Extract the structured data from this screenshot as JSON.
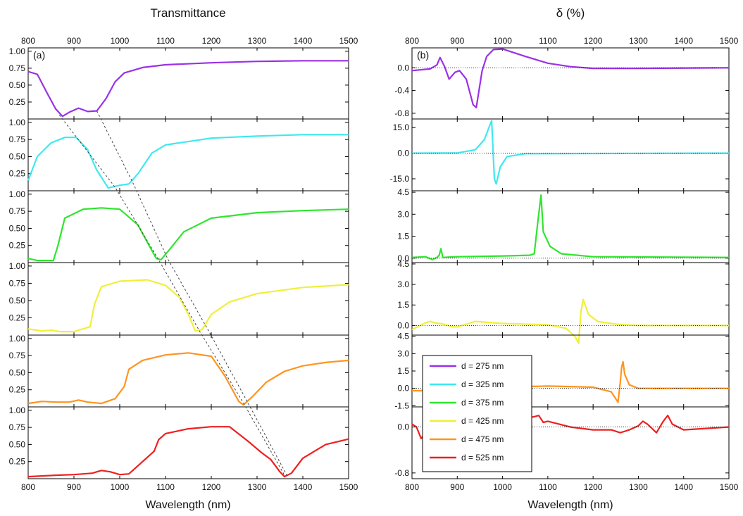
{
  "figure": {
    "left_title": "Transmittance",
    "right_title": "δ (%)",
    "left_xlabel": "Wavelength (nm)",
    "right_xlabel": "Wavelength (nm)",
    "left_panel_label": "(a)",
    "right_panel_label": "(b)"
  },
  "series_colors": [
    "#9b30e6",
    "#3fe8f0",
    "#2ee62e",
    "#f0ef3a",
    "#ff9420",
    "#ee2020"
  ],
  "legend": [
    "d = 275 nm",
    "d = 325 nm",
    "d = 375 nm",
    "d = 425 nm",
    "d = 475 nm",
    "d = 525 nm"
  ],
  "chart_data": [
    {
      "type": "line",
      "title": "Transmittance",
      "xlabel": "Wavelength (nm)",
      "xlim": [
        800,
        1500
      ],
      "xticks": [
        800,
        900,
        1000,
        1100,
        1200,
        1300,
        1400,
        1500
      ],
      "xtick_labels": [
        "800",
        "900",
        "1000",
        "1100",
        "1200",
        "1300",
        "1400",
        "1500"
      ],
      "ylim": [
        0,
        1.05
      ],
      "yticks": [
        0.25,
        0.5,
        0.75,
        1.0
      ],
      "ytick_labels": [
        "0.25",
        "0.50",
        "0.75",
        "1.00"
      ],
      "guide_lines": [
        {
          "points": [
            [
              868,
              0.06
            ],
            [
              990,
              0.05
            ],
            [
              1085,
              0.04
            ],
            [
              1175,
              0.05
            ],
            [
              1270,
              0.06
            ],
            [
              1360,
              0.05
            ]
          ]
        },
        {
          "points": [
            [
              950,
              0.12
            ],
            [
              1030,
              0.1
            ],
            [
              1105,
              0.05
            ],
            [
              1195,
              0.05
            ],
            [
              1280,
              0.06
            ],
            [
              1365,
              0.05
            ]
          ]
        }
      ],
      "series": [
        {
          "x": [
            800,
            820,
            840,
            860,
            875,
            890,
            910,
            930,
            950,
            970,
            990,
            1010,
            1050,
            1100,
            1200,
            1300,
            1400,
            1500
          ],
          "y": [
            0.7,
            0.66,
            0.4,
            0.15,
            0.04,
            0.1,
            0.16,
            0.11,
            0.12,
            0.3,
            0.55,
            0.68,
            0.76,
            0.8,
            0.83,
            0.85,
            0.86,
            0.86
          ]
        },
        {
          "x": [
            800,
            820,
            850,
            880,
            905,
            930,
            950,
            975,
            1000,
            1020,
            1040,
            1070,
            1100,
            1200,
            1300,
            1400,
            1500
          ],
          "y": [
            0.15,
            0.5,
            0.7,
            0.78,
            0.78,
            0.6,
            0.3,
            0.04,
            0.08,
            0.1,
            0.25,
            0.55,
            0.67,
            0.77,
            0.8,
            0.82,
            0.82
          ]
        },
        {
          "x": [
            800,
            820,
            840,
            855,
            865,
            880,
            920,
            960,
            1000,
            1040,
            1060,
            1080,
            1090,
            1110,
            1140,
            1200,
            1300,
            1400,
            1500
          ],
          "y": [
            0.06,
            0.03,
            0.03,
            0.03,
            0.25,
            0.65,
            0.78,
            0.8,
            0.78,
            0.55,
            0.3,
            0.06,
            0.04,
            0.2,
            0.45,
            0.65,
            0.73,
            0.76,
            0.78
          ]
        },
        {
          "x": [
            800,
            830,
            850,
            870,
            900,
            935,
            945,
            960,
            1000,
            1060,
            1100,
            1130,
            1150,
            1165,
            1180,
            1200,
            1240,
            1300,
            1400,
            1500
          ],
          "y": [
            0.09,
            0.06,
            0.07,
            0.05,
            0.05,
            0.12,
            0.45,
            0.7,
            0.78,
            0.8,
            0.72,
            0.55,
            0.3,
            0.06,
            0.08,
            0.3,
            0.48,
            0.6,
            0.69,
            0.73
          ]
        },
        {
          "x": [
            800,
            830,
            860,
            890,
            910,
            930,
            960,
            990,
            1010,
            1020,
            1050,
            1100,
            1150,
            1200,
            1230,
            1260,
            1270,
            1290,
            1320,
            1360,
            1400,
            1450,
            1500
          ],
          "y": [
            0.05,
            0.08,
            0.07,
            0.07,
            0.1,
            0.07,
            0.05,
            0.12,
            0.3,
            0.55,
            0.68,
            0.76,
            0.79,
            0.74,
            0.45,
            0.08,
            0.03,
            0.15,
            0.36,
            0.52,
            0.6,
            0.65,
            0.68
          ]
        },
        {
          "x": [
            800,
            830,
            860,
            900,
            940,
            960,
            980,
            1000,
            1020,
            1050,
            1075,
            1085,
            1100,
            1150,
            1200,
            1240,
            1280,
            1310,
            1330,
            1350,
            1360,
            1375,
            1400,
            1450,
            1500
          ],
          "y": [
            0.03,
            0.04,
            0.05,
            0.06,
            0.08,
            0.12,
            0.1,
            0.06,
            0.07,
            0.25,
            0.4,
            0.57,
            0.66,
            0.73,
            0.76,
            0.76,
            0.55,
            0.38,
            0.28,
            0.1,
            0.03,
            0.08,
            0.3,
            0.5,
            0.58
          ]
        }
      ]
    },
    {
      "type": "line",
      "title": "δ (%)",
      "xlabel": "Wavelength (nm)",
      "xlim": [
        800,
        1500
      ],
      "xticks": [
        800,
        900,
        1000,
        1100,
        1200,
        1300,
        1400,
        1500
      ],
      "xtick_labels": [
        "800",
        "900",
        "1000",
        "1100",
        "1200",
        "1300",
        "1400",
        "1500"
      ],
      "legend": {
        "placement": "bottom-left"
      },
      "panels": [
        {
          "ylim": [
            -0.9,
            0.35
          ],
          "yticks": [
            0.0,
            -0.4,
            -0.8
          ],
          "ytick_labels": [
            "0.0",
            "-0.4",
            "-0.8"
          ],
          "x": [
            800,
            840,
            855,
            862,
            872,
            882,
            895,
            905,
            920,
            935,
            942,
            955,
            965,
            980,
            1000,
            1050,
            1100,
            1150,
            1200,
            1300,
            1500
          ],
          "y": [
            -0.05,
            -0.02,
            0.05,
            0.18,
            0.02,
            -0.2,
            -0.08,
            -0.05,
            -0.2,
            -0.65,
            -0.7,
            -0.05,
            0.2,
            0.32,
            0.33,
            0.2,
            0.08,
            0.02,
            -0.01,
            -0.01,
            0.0
          ]
        },
        {
          "ylim": [
            -22,
            20
          ],
          "yticks": [
            15,
            0,
            -15
          ],
          "ytick_labels": [
            "15.0",
            "0.0",
            "-15.0"
          ],
          "x": [
            800,
            900,
            940,
            960,
            970,
            976,
            982,
            986,
            995,
            1010,
            1050,
            1500
          ],
          "y": [
            0,
            0.1,
            2,
            8,
            15,
            19,
            -15,
            -18,
            -8,
            -2,
            -0.3,
            0
          ]
        },
        {
          "ylim": [
            -0.3,
            4.6
          ],
          "yticks": [
            4.5,
            3.0,
            1.5,
            0.0
          ],
          "ytick_labels": [
            "4.5",
            "3.0",
            "1.5",
            "0.0"
          ],
          "x": [
            800,
            830,
            845,
            855,
            860,
            864,
            868,
            900,
            1000,
            1060,
            1070,
            1078,
            1085,
            1090,
            1105,
            1130,
            1200,
            1500
          ],
          "y": [
            0.05,
            0.1,
            -0.1,
            0.05,
            0.2,
            0.65,
            0.05,
            0.1,
            0.15,
            0.2,
            0.3,
            2.5,
            4.3,
            1.8,
            0.8,
            0.3,
            0.1,
            0.05
          ]
        },
        {
          "ylim": [
            -0.7,
            4.6
          ],
          "yticks": [
            4.5,
            3.0,
            1.5,
            0.0
          ],
          "ytick_labels": [
            "4.5",
            "3.0",
            "1.5",
            "0.0"
          ],
          "x": [
            800,
            830,
            840,
            850,
            870,
            890,
            900,
            920,
            940,
            960,
            1000,
            1100,
            1140,
            1160,
            1168,
            1173,
            1178,
            1190,
            1210,
            1250,
            1300,
            1500
          ],
          "y": [
            -0.3,
            0.2,
            0.3,
            0.2,
            0.1,
            -0.1,
            -0.1,
            0.1,
            0.3,
            0.25,
            0.15,
            0.05,
            -0.2,
            -0.8,
            -1.3,
            1.0,
            1.9,
            0.8,
            0.3,
            0.1,
            0.0,
            0.0
          ]
        },
        {
          "ylim": [
            -1.6,
            4.6
          ],
          "yticks": [
            4.5,
            3.0,
            1.5,
            0.0,
            -1.5
          ],
          "ytick_labels": [
            "4.5",
            "3.0",
            "1.5",
            "0.0",
            "-1.5"
          ],
          "x": [
            800,
            820,
            840,
            1000,
            1100,
            1200,
            1240,
            1255,
            1260,
            1263,
            1266,
            1270,
            1280,
            1300,
            1400,
            1500
          ],
          "y": [
            -0.2,
            -0.2,
            0.0,
            0.1,
            0.2,
            0.1,
            -0.3,
            -1.2,
            0.5,
            1.8,
            2.3,
            1.2,
            0.3,
            0.0,
            0.0,
            0.0
          ]
        },
        {
          "ylim": [
            -0.9,
            0.35
          ],
          "yticks": [
            0.0,
            -0.8
          ],
          "ytick_labels": [
            "0.0",
            "-0.8"
          ],
          "x": [
            800,
            810,
            820,
            830,
            840,
            900,
            1000,
            1050,
            1070,
            1080,
            1090,
            1100,
            1150,
            1200,
            1240,
            1260,
            1280,
            1300,
            1310,
            1320,
            1340,
            1355,
            1365,
            1375,
            1400,
            1500
          ],
          "y": [
            0.05,
            0.0,
            -0.2,
            -0.1,
            0.0,
            0.05,
            0.1,
            0.15,
            0.18,
            0.2,
            0.08,
            0.1,
            0.0,
            -0.05,
            -0.05,
            -0.1,
            -0.05,
            0.02,
            0.1,
            0.05,
            -0.1,
            0.1,
            0.2,
            0.05,
            -0.05,
            0.0
          ]
        }
      ]
    }
  ]
}
